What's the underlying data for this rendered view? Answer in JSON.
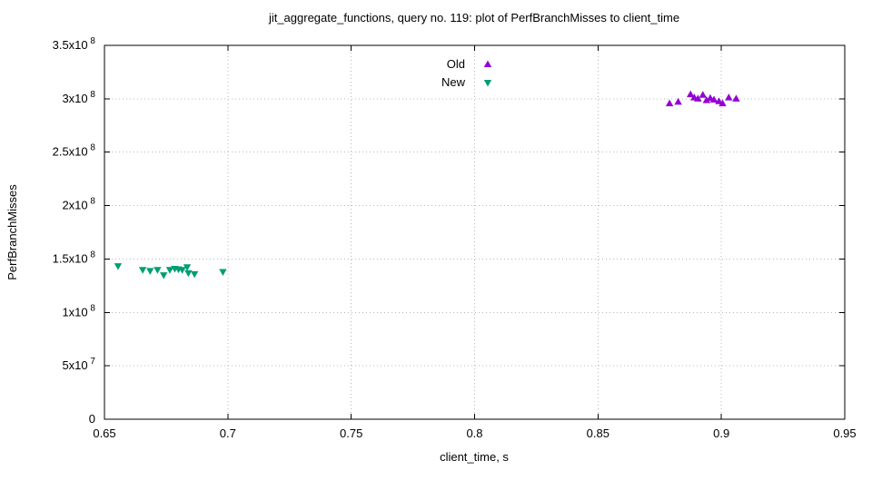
{
  "chart_data": {
    "type": "scatter",
    "title": "jit_aggregate_functions, query no. 119: plot of PerfBranchMisses to client_time",
    "xlabel": "client_time, s",
    "ylabel": "PerfBranchMisses",
    "xlim": [
      0.65,
      0.95
    ],
    "ylim": [
      0,
      350000000.0
    ],
    "grid": true,
    "legend_position": "top-center-inside",
    "x_ticks": [
      {
        "v": 0.65,
        "label": "0.65"
      },
      {
        "v": 0.7,
        "label": "0.7"
      },
      {
        "v": 0.75,
        "label": "0.75"
      },
      {
        "v": 0.8,
        "label": "0.8"
      },
      {
        "v": 0.85,
        "label": "0.85"
      },
      {
        "v": 0.9,
        "label": "0.9"
      },
      {
        "v": 0.95,
        "label": "0.95"
      }
    ],
    "y_ticks": [
      {
        "v": 0,
        "base": "0",
        "sup": ""
      },
      {
        "v": 50000000.0,
        "base": "5x10",
        "sup": "7"
      },
      {
        "v": 100000000.0,
        "base": "1x10",
        "sup": "8"
      },
      {
        "v": 150000000.0,
        "base": "1.5x10",
        "sup": "8"
      },
      {
        "v": 200000000.0,
        "base": "2x10",
        "sup": "8"
      },
      {
        "v": 250000000.0,
        "base": "2.5x10",
        "sup": "8"
      },
      {
        "v": 300000000.0,
        "base": "3x10",
        "sup": "8"
      },
      {
        "v": 350000000.0,
        "base": "3.5x10",
        "sup": "8"
      }
    ],
    "series": [
      {
        "name": "Old",
        "color": "#9400d3",
        "marker": "triangle-up",
        "points": [
          [
            0.879,
            295500000.0
          ],
          [
            0.8825,
            297000000.0
          ],
          [
            0.8875,
            304000000.0
          ],
          [
            0.889,
            301000000.0
          ],
          [
            0.8905,
            300000000.0
          ],
          [
            0.8925,
            303500000.0
          ],
          [
            0.894,
            298500000.0
          ],
          [
            0.8955,
            300500000.0
          ],
          [
            0.897,
            299000000.0
          ],
          [
            0.899,
            297500000.0
          ],
          [
            0.9005,
            295500000.0
          ],
          [
            0.903,
            301000000.0
          ],
          [
            0.906,
            300000000.0
          ]
        ]
      },
      {
        "name": "New",
        "color": "#009e73",
        "marker": "triangle-down",
        "points": [
          [
            0.6555,
            143500000.0
          ],
          [
            0.6655,
            140000000.0
          ],
          [
            0.6685,
            139000000.0
          ],
          [
            0.6715,
            140000000.0
          ],
          [
            0.674,
            135000000.0
          ],
          [
            0.6765,
            140000000.0
          ],
          [
            0.6785,
            141000000.0
          ],
          [
            0.68,
            140500000.0
          ],
          [
            0.6815,
            140000000.0
          ],
          [
            0.6835,
            142500000.0
          ],
          [
            0.684,
            137000000.0
          ],
          [
            0.6865,
            136000000.0
          ],
          [
            0.698,
            138000000.0
          ]
        ]
      }
    ],
    "style": {
      "grid_color": "#b8b8b8",
      "border_color": "#000000",
      "background": "#ffffff"
    }
  }
}
